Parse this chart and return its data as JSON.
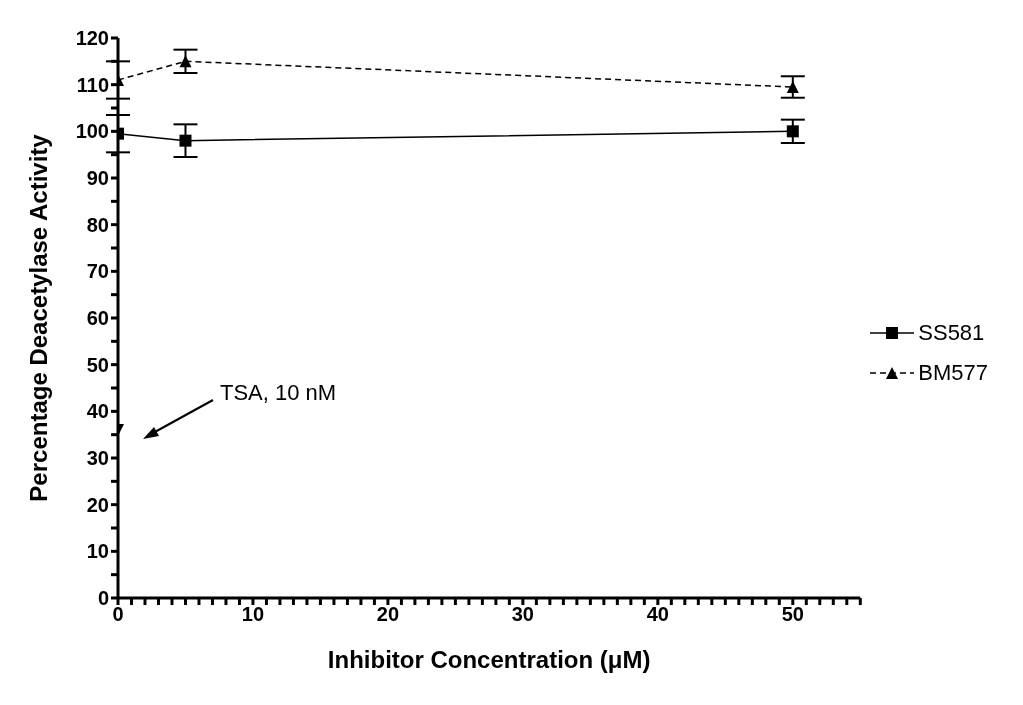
{
  "chart_data": {
    "type": "line",
    "xlabel": "Inhibitor Concentration (μM)",
    "ylabel": "Percentage Deacetylase Activity",
    "series": [
      {
        "name": "SS581",
        "color": "#000000",
        "x": [
          0,
          5,
          50
        ],
        "values": [
          99.5,
          98,
          100
        ],
        "errors": [
          4,
          3.5,
          2.5
        ],
        "marker": "square",
        "line_style": "solid"
      },
      {
        "name": "BM577",
        "color": "#000000",
        "x": [
          0,
          5,
          50
        ],
        "values": [
          111,
          115,
          109.5
        ],
        "errors": [
          4,
          2.5,
          2.3
        ],
        "marker": "triangle",
        "line_style": "dashed"
      },
      {
        "type": "scatter",
        "color": "#000000",
        "x": [
          0
        ],
        "values": [
          36
        ],
        "marker": "triangle-down"
      }
    ],
    "annotations": [
      "TSA, 10 nM"
    ],
    "xlim": [
      0,
      55
    ],
    "xticks": [
      0,
      {
        "value": 1,
        "label": null
      },
      {
        "value": 2,
        "label": null
      },
      {
        "value": 3,
        "label": null
      },
      {
        "value": 4,
        "label": null
      },
      {
        "value": 5,
        "label": null
      },
      {
        "value": 6,
        "label": null
      },
      {
        "value": 7,
        "label": null
      },
      {
        "value": 8,
        "label": null
      },
      {
        "value": 9,
        "label": null
      },
      10,
      {
        "value": 11,
        "label": null
      },
      {
        "value": 12,
        "label": null
      },
      {
        "value": 13,
        "label": null
      },
      {
        "value": 14,
        "label": null
      },
      {
        "value": 15,
        "label": null
      },
      {
        "value": 16,
        "label": null
      },
      {
        "value": 17,
        "label": null
      },
      {
        "value": 18,
        "label": null
      },
      {
        "value": 19,
        "label": null
      },
      20,
      {
        "value": 21,
        "label": null
      },
      {
        "value": 22,
        "label": null
      },
      {
        "value": 23,
        "label": null
      },
      {
        "value": 24,
        "label": null
      },
      {
        "value": 25,
        "label": null
      },
      {
        "value": 26,
        "label": null
      },
      {
        "value": 27,
        "label": null
      },
      {
        "value": 28,
        "label": null
      },
      {
        "value": 29,
        "label": null
      },
      30,
      {
        "value": 31,
        "label": null
      },
      {
        "value": 32,
        "label": null
      },
      {
        "value": 33,
        "label": null
      },
      {
        "value": 34,
        "label": null
      },
      {
        "value": 35,
        "label": null
      },
      {
        "value": 36,
        "label": null
      },
      {
        "value": 37,
        "label": null
      },
      {
        "value": 38,
        "label": null
      },
      {
        "value": 39,
        "label": null
      },
      40,
      {
        "value": 41,
        "label": null
      },
      {
        "value": 42,
        "label": null
      },
      {
        "value": 43,
        "label": null
      },
      {
        "value": 44,
        "label": null
      },
      {
        "value": 45,
        "label": null
      },
      {
        "value": 46,
        "label": null
      },
      {
        "value": 47,
        "label": null
      },
      {
        "value": 48,
        "label": null
      },
      {
        "value": 49,
        "label": null
      },
      50,
      {
        "value": 51,
        "label": null
      },
      {
        "value": 52,
        "label": null
      },
      {
        "value": 53,
        "label": null
      },
      {
        "value": 54,
        "label": null
      },
      {
        "value": 55,
        "label": null
      }
    ],
    "ylim": [
      0,
      120
    ],
    "yticks": [
      0,
      {
        "value": 5,
        "label": null
      },
      10,
      {
        "value": 15,
        "label": null
      },
      20,
      {
        "value": 25,
        "label": null
      },
      30,
      {
        "value": 35,
        "label": null
      },
      40,
      {
        "value": 45,
        "label": null
      },
      50,
      {
        "value": 55,
        "label": null
      },
      60,
      {
        "value": 65,
        "label": null
      },
      70,
      {
        "value": 75,
        "label": null
      },
      80,
      {
        "value": 85,
        "label": null
      },
      90,
      {
        "value": 95,
        "label": null
      },
      100,
      {
        "value": 105,
        "label": null
      },
      110,
      {
        "value": 115,
        "label": null
      },
      120
    ],
    "grid": false,
    "legend": "right"
  }
}
